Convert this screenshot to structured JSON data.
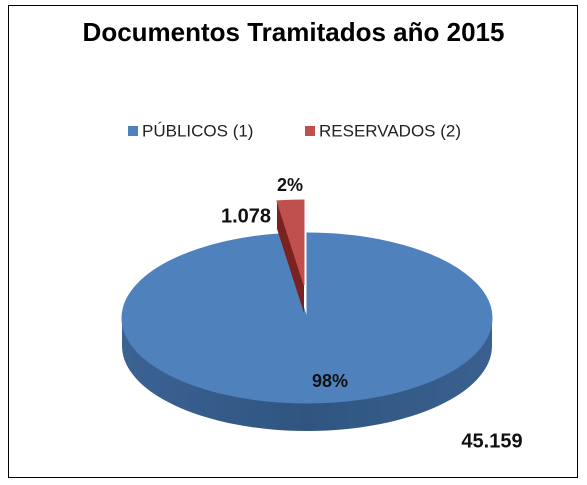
{
  "chart_data": {
    "type": "pie",
    "title": "Documentos Tramitados año 2015",
    "categories": [
      "PÚBLICOS (1)",
      "RESERVADOS (2)"
    ],
    "values": [
      45159,
      1078
    ],
    "value_labels": [
      "45.159",
      "1.078"
    ],
    "percentages": [
      98,
      2
    ],
    "percentage_labels": [
      "98%",
      "2%"
    ],
    "colors": [
      "#4f81bd",
      "#c0504d"
    ],
    "legend": "top",
    "exploded": [
      false,
      true
    ]
  }
}
